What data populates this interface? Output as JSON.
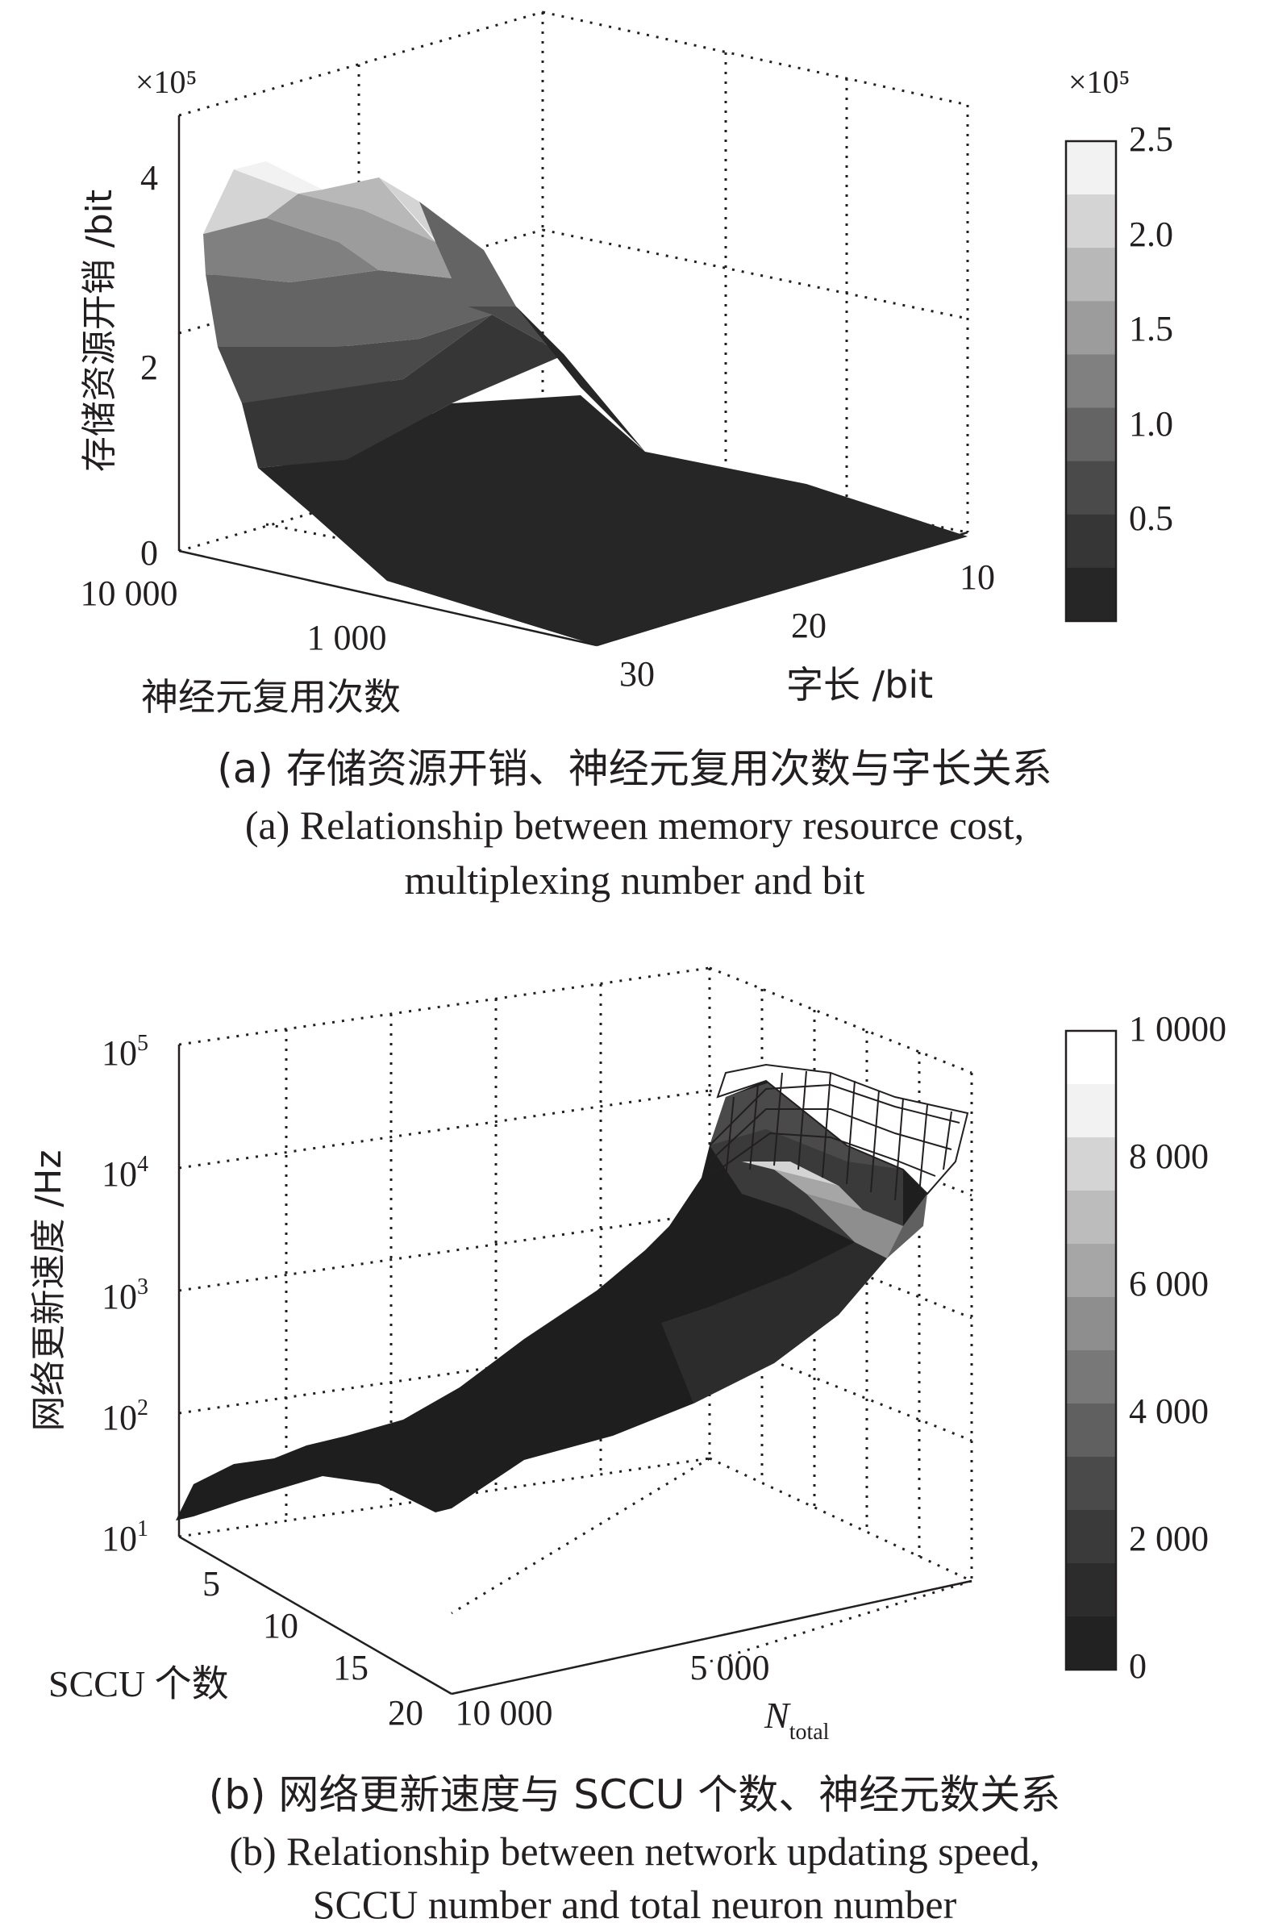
{
  "chart_data": [
    {
      "type": "surface3d",
      "scale_label": "×10⁵",
      "zlabel": "存储资源开销 /bit",
      "xlabel": "神经元复用次数",
      "ylabel": "字长 /bit",
      "z_ticks": [
        "0",
        "2",
        "4"
      ],
      "x_ticks": [
        "10 000",
        "1 000"
      ],
      "y_ticks": [
        "10",
        "20",
        "30"
      ],
      "colorbar": {
        "scale_label": "×10⁵",
        "ticks": [
          "2.5",
          "2.0",
          "1.5",
          "1.0",
          "0.5"
        ],
        "levels": [
          "#f2f2f2",
          "#d4d4d4",
          "#b8b8b8",
          "#9c9c9c",
          "#808080",
          "#646464",
          "#4a4a4a",
          "#363636",
          "#262626"
        ]
      },
      "caption_cn": "(a) 存储资源开销、神经元复用次数与字长关系",
      "caption_en_1": "(a) Relationship between memory resource cost,",
      "caption_en_2": "multiplexing number and bit"
    },
    {
      "type": "surface3d",
      "zlabel": "网络更新速度 /Hz",
      "xlabel": "SCCU 个数",
      "ylabel": "N",
      "ylabel_sub": "total",
      "z_ticks": [
        {
          "base": "10",
          "exp": "5"
        },
        {
          "base": "10",
          "exp": "4"
        },
        {
          "base": "10",
          "exp": "3"
        },
        {
          "base": "10",
          "exp": "2"
        },
        {
          "base": "10",
          "exp": "1"
        }
      ],
      "x_ticks": [
        "5",
        "10",
        "15",
        "20"
      ],
      "y_ticks": [
        "10 000",
        "5 000"
      ],
      "colorbar": {
        "ticks": [
          "1 0000",
          "8 000",
          "6 000",
          "4 000",
          "2 000",
          "0"
        ],
        "levels": [
          "#ffffff",
          "#f2f2f2",
          "#d4d4d4",
          "#bcbcbc",
          "#a6a6a6",
          "#8e8e8e",
          "#787878",
          "#606060",
          "#4a4a4a",
          "#3a3a3a",
          "#2c2c2c",
          "#222222"
        ]
      },
      "caption_cn": "(b) 网络更新速度与 SCCU 个数、神经元数关系",
      "caption_en_1": "(b) Relationship between network updating speed,",
      "caption_en_2": "SCCU number and total neuron number"
    }
  ]
}
